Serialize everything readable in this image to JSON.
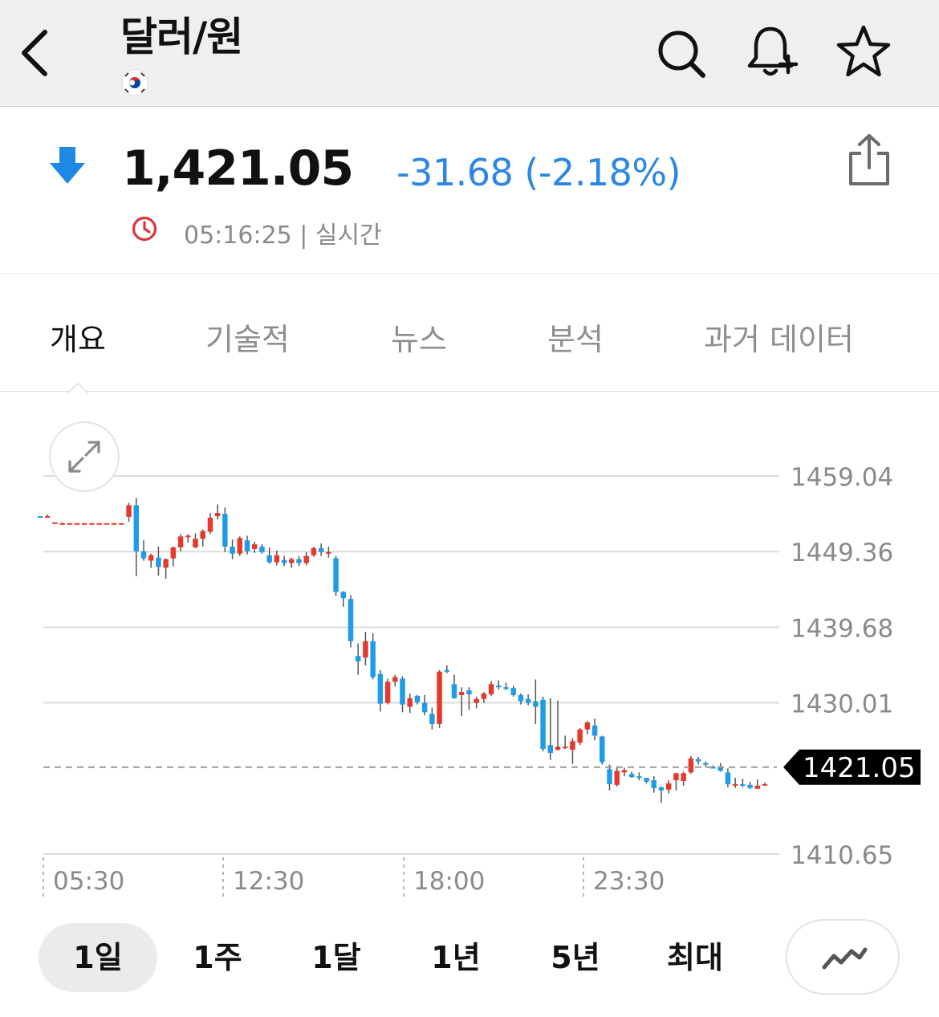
{
  "header": {
    "title": "달러/원",
    "icons": [
      "back-chevron-icon",
      "search-icon",
      "bell-plus-icon",
      "star-icon"
    ],
    "flag": "korea-flag"
  },
  "quote": {
    "price": "1,421.05",
    "change": "-31.68 (-2.18%)",
    "timestamp": "05:16:25 | 실시간",
    "direction": "down"
  },
  "tabs": [
    {
      "label": "개요",
      "active": true
    },
    {
      "label": "기술적",
      "active": false
    },
    {
      "label": "뉴스",
      "active": false
    },
    {
      "label": "분석",
      "active": false
    },
    {
      "label": "과거 데이터",
      "active": false
    }
  ],
  "periods": [
    {
      "label": "1일",
      "active": true
    },
    {
      "label": "1주",
      "active": false
    },
    {
      "label": "1달",
      "active": false
    },
    {
      "label": "1년",
      "active": false
    },
    {
      "label": "5년",
      "active": false
    },
    {
      "label": "최대",
      "active": false
    }
  ],
  "colors": {
    "up": "#e8382c",
    "down": "#1e9be9",
    "accent_blue": "#2d87e2",
    "clock_red": "#d8363b",
    "grid": "#dcdcdc",
    "axis_text": "#8a8a8a"
  },
  "chart_data": {
    "type": "candlestick",
    "y_ticks": [
      "1459.04",
      "1449.36",
      "1439.68",
      "1430.01",
      "1410.65"
    ],
    "x_ticks": [
      "05:30",
      "12:30",
      "18:00",
      "23:30"
    ],
    "current_label": "1421.05",
    "current_value": 1421.05,
    "ylim": [
      1410.65,
      1459.04
    ],
    "grid": true,
    "candles": [
      [
        1453.9,
        1453.9,
        1453.7,
        1453.7
      ],
      [
        1453.9,
        1454.1,
        1453.7,
        1453.9
      ],
      [
        1453.1,
        1453.1,
        1453.0,
        1453.1
      ],
      [
        1452.9,
        1453.1,
        1452.9,
        1453.0
      ],
      [
        1452.9,
        1453.0,
        1452.9,
        1453.0
      ],
      [
        1452.9,
        1453.0,
        1452.9,
        1453.0
      ],
      [
        1452.9,
        1453.0,
        1452.9,
        1453.0
      ],
      [
        1452.9,
        1453.0,
        1452.9,
        1453.0
      ],
      [
        1452.9,
        1453.0,
        1452.9,
        1453.0
      ],
      [
        1452.9,
        1453.0,
        1452.9,
        1453.0
      ],
      [
        1452.9,
        1453.0,
        1452.9,
        1453.0
      ],
      [
        1452.9,
        1453.0,
        1452.9,
        1453.0
      ],
      [
        1453.8,
        1455.6,
        1453.2,
        1455.3
      ],
      [
        1455.3,
        1456.2,
        1446.2,
        1449.4
      ],
      [
        1449.4,
        1450.8,
        1448.2,
        1448.5
      ],
      [
        1448.2,
        1449.1,
        1447.3,
        1448.9
      ],
      [
        1448.6,
        1450.0,
        1446.3,
        1447.4
      ],
      [
        1447.3,
        1448.5,
        1445.9,
        1448.4
      ],
      [
        1448.5,
        1450.0,
        1447.5,
        1449.9
      ],
      [
        1449.9,
        1451.6,
        1449.4,
        1451.3
      ],
      [
        1451.3,
        1451.6,
        1450.5,
        1451.4
      ],
      [
        1449.9,
        1451.7,
        1449.8,
        1451.0
      ],
      [
        1451.0,
        1452.2,
        1450.0,
        1452.0
      ],
      [
        1451.9,
        1454.3,
        1451.6,
        1453.7
      ],
      [
        1453.9,
        1455.4,
        1453.5,
        1454.3
      ],
      [
        1454.2,
        1455.0,
        1449.3,
        1450.0
      ],
      [
        1450.0,
        1450.9,
        1448.4,
        1449.1
      ],
      [
        1449.1,
        1451.3,
        1448.8,
        1451.1
      ],
      [
        1450.8,
        1451.4,
        1449.0,
        1449.4
      ],
      [
        1449.7,
        1450.6,
        1449.2,
        1450.3
      ],
      [
        1450.0,
        1450.3,
        1449.1,
        1449.3
      ],
      [
        1448.9,
        1449.9,
        1447.8,
        1448.0
      ],
      [
        1448.0,
        1449.5,
        1447.6,
        1448.9
      ],
      [
        1448.3,
        1448.8,
        1447.5,
        1447.9
      ],
      [
        1447.9,
        1448.6,
        1447.3,
        1448.4
      ],
      [
        1448.4,
        1448.8,
        1447.5,
        1447.9
      ],
      [
        1447.9,
        1449.3,
        1447.6,
        1448.8
      ],
      [
        1448.9,
        1450.0,
        1448.7,
        1449.8
      ],
      [
        1449.8,
        1450.4,
        1448.8,
        1449.3
      ],
      [
        1449.3,
        1450.0,
        1448.6,
        1449.3
      ],
      [
        1448.5,
        1448.8,
        1443.7,
        1444.2
      ],
      [
        1444.2,
        1444.3,
        1442.3,
        1443.4
      ],
      [
        1443.3,
        1443.8,
        1437.1,
        1437.9
      ],
      [
        1436.0,
        1437.6,
        1433.6,
        1435.3
      ],
      [
        1435.8,
        1439.1,
        1434.8,
        1437.9
      ],
      [
        1437.9,
        1438.9,
        1433.0,
        1433.3
      ],
      [
        1433.7,
        1434.2,
        1428.9,
        1429.9
      ],
      [
        1430.0,
        1433.1,
        1429.8,
        1432.7
      ],
      [
        1432.7,
        1433.6,
        1432.1,
        1433.3
      ],
      [
        1433.1,
        1433.4,
        1428.8,
        1429.8
      ],
      [
        1429.5,
        1431.2,
        1428.7,
        1430.6
      ],
      [
        1430.9,
        1431.0,
        1429.8,
        1430.1
      ],
      [
        1430.0,
        1431.0,
        1428.4,
        1428.8
      ],
      [
        1428.6,
        1429.4,
        1426.6,
        1427.3
      ],
      [
        1427.3,
        1434.2,
        1426.8,
        1434.0
      ],
      [
        1434.2,
        1434.8,
        1433.8,
        1434.1
      ],
      [
        1432.4,
        1433.6,
        1430.5,
        1430.6
      ],
      [
        1431.0,
        1432.0,
        1428.3,
        1431.4
      ],
      [
        1431.6,
        1432.0,
        1429.1,
        1431.1
      ],
      [
        1430.0,
        1430.8,
        1429.3,
        1430.5
      ],
      [
        1430.5,
        1431.4,
        1430.0,
        1431.2
      ],
      [
        1431.1,
        1432.8,
        1430.9,
        1432.4
      ],
      [
        1432.2,
        1432.9,
        1431.7,
        1432.0
      ],
      [
        1432.0,
        1432.6,
        1431.6,
        1431.9
      ],
      [
        1431.9,
        1432.2,
        1430.8,
        1431.0
      ],
      [
        1431.0,
        1431.2,
        1429.8,
        1430.2
      ],
      [
        1430.5,
        1431.1,
        1429.7,
        1430.0
      ],
      [
        1430.2,
        1433.0,
        1427.3,
        1429.5
      ],
      [
        1430.4,
        1430.8,
        1423.8,
        1424.1
      ],
      [
        1424.6,
        1430.6,
        1422.7,
        1423.6
      ],
      [
        1424.0,
        1430.3,
        1423.9,
        1424.4
      ],
      [
        1424.4,
        1425.8,
        1424.1,
        1424.4
      ],
      [
        1424.0,
        1425.5,
        1422.2,
        1425.1
      ],
      [
        1424.9,
        1426.8,
        1424.6,
        1426.6
      ],
      [
        1426.6,
        1427.7,
        1426.0,
        1427.5
      ],
      [
        1427.1,
        1428.0,
        1425.2,
        1425.8
      ],
      [
        1425.7,
        1425.8,
        1422.1,
        1422.4
      ],
      [
        1421.5,
        1422.1,
        1418.8,
        1419.6
      ],
      [
        1419.5,
        1421.9,
        1419.3,
        1421.3
      ],
      [
        1421.1,
        1421.7,
        1420.6,
        1421.4
      ],
      [
        1420.9,
        1421.2,
        1420.4,
        1420.5
      ],
      [
        1420.6,
        1421.1,
        1420.1,
        1420.4
      ],
      [
        1420.4,
        1420.4,
        1419.7,
        1419.9
      ],
      [
        1420.1,
        1420.6,
        1418.5,
        1419.1
      ],
      [
        1419.2,
        1419.3,
        1417.2,
        1418.8
      ],
      [
        1418.9,
        1420.1,
        1418.4,
        1419.7
      ],
      [
        1420.1,
        1421.0,
        1418.8,
        1421.0
      ],
      [
        1420.0,
        1421.2,
        1419.4,
        1421.0
      ],
      [
        1421.1,
        1423.2,
        1420.9,
        1422.9
      ],
      [
        1422.8,
        1423.1,
        1422.1,
        1422.5
      ],
      [
        1422.3,
        1422.5,
        1421.8,
        1422.1
      ],
      [
        1421.8,
        1422.0,
        1421.6,
        1421.6
      ],
      [
        1421.9,
        1422.3,
        1421.2,
        1421.3
      ],
      [
        1421.1,
        1421.6,
        1419.2,
        1419.6
      ],
      [
        1419.6,
        1420.4,
        1419.1,
        1419.6
      ],
      [
        1419.6,
        1420.3,
        1419.2,
        1419.4
      ],
      [
        1419.5,
        1419.9,
        1419.0,
        1419.1
      ],
      [
        1419.0,
        1420.2,
        1419.0,
        1419.4
      ],
      [
        1419.6,
        1419.8,
        1419.5,
        1419.6
      ]
    ]
  }
}
